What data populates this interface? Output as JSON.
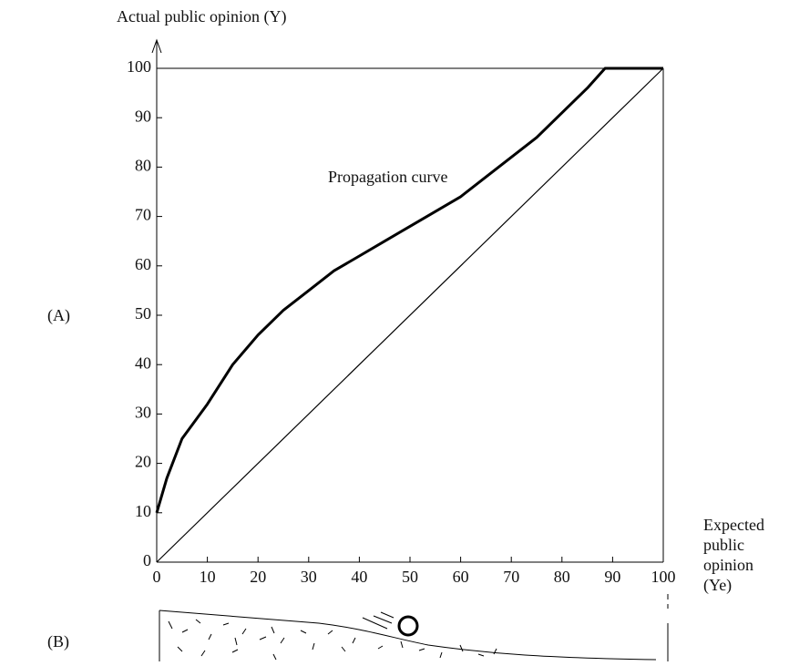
{
  "chart_data": {
    "type": "line",
    "y_label": "Actual public opinion (Y)",
    "x_label_lines": [
      "Expected",
      "public",
      "opinion",
      "(Ye)"
    ],
    "annotation": "Propagation curve",
    "panel_labels": [
      "(A)",
      "(B)"
    ],
    "series": [
      {
        "color": "#000000",
        "x": [
          0,
          2,
          5,
          10,
          15,
          20,
          25,
          30,
          35,
          40,
          45,
          50,
          55,
          60,
          65,
          70,
          75,
          80,
          85,
          88.5,
          100
        ],
        "values": [
          10,
          17,
          25,
          32,
          40,
          46,
          51,
          55,
          59,
          62,
          65,
          68,
          71,
          74,
          78,
          82,
          86,
          91,
          96,
          100,
          100
        ]
      },
      {
        "color": "#000000",
        "x": [
          0,
          100
        ],
        "values": [
          0,
          100
        ]
      }
    ],
    "xlim": [
      0,
      100
    ],
    "ylim": [
      0,
      100
    ],
    "xticks": [
      0,
      10,
      20,
      30,
      40,
      50,
      60,
      70,
      80,
      90,
      100
    ],
    "yticks": [
      0,
      10,
      20,
      30,
      40,
      50,
      60,
      70,
      80,
      90,
      100
    ]
  }
}
